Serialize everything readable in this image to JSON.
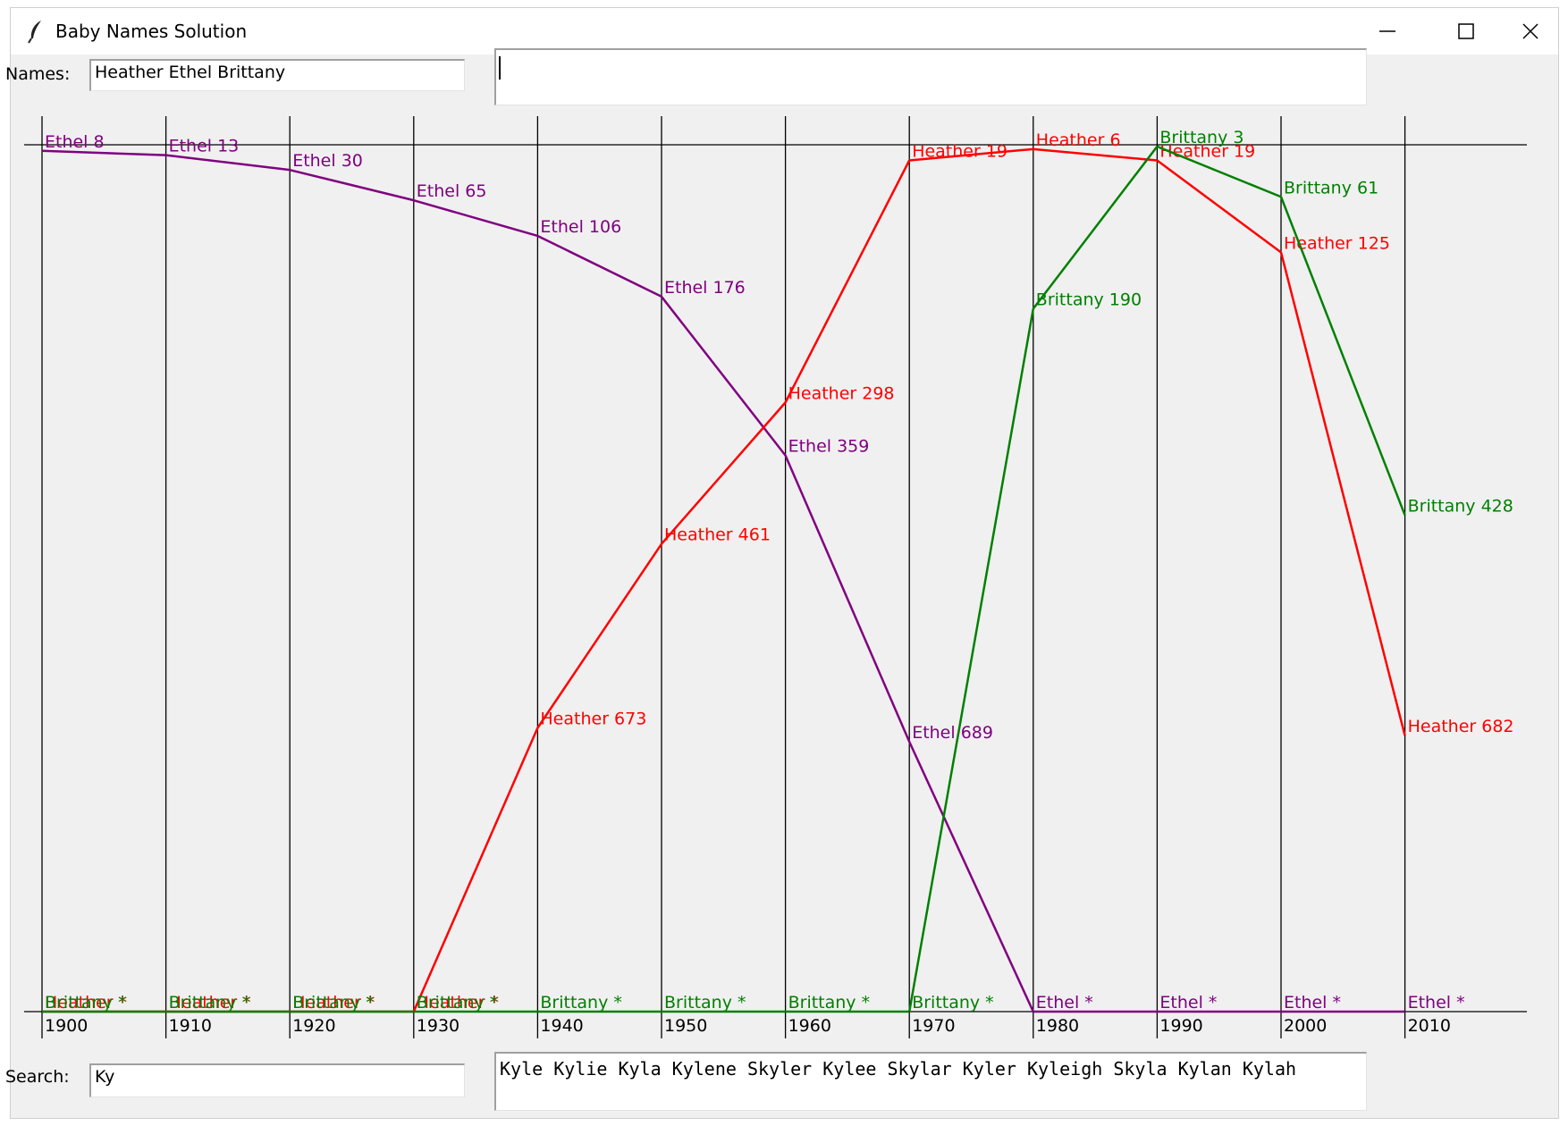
{
  "window": {
    "title": "Baby Names Solution"
  },
  "names_label": "Names:",
  "names_value": "Heather Ethel Brittany",
  "top_text_value": "",
  "search_label": "Search:",
  "search_value": "Ky",
  "search_results": "Kyle Kylie Kyla Kylene Skyler Kylee Skylar Kyler Kyleigh Skyla Kylan Kylah",
  "colors": {
    "Heather": "#ff0000",
    "Ethel": "#800080",
    "Brittany": "#008000",
    "grid": "#000000"
  },
  "chart_data": {
    "type": "line",
    "x_label": "",
    "y_label": "",
    "decades": [
      1900,
      1910,
      1920,
      1930,
      1940,
      1950,
      1960,
      1970,
      1980,
      1990,
      2000,
      2010
    ],
    "max_rank": 1000,
    "rank_direction": "rank 1 at top, unranked at bottom",
    "unranked_marker": "*",
    "series": [
      {
        "name": "Ethel",
        "color": "#800080",
        "ranks": [
          8,
          13,
          30,
          65,
          106,
          176,
          359,
          689,
          null,
          null,
          null,
          null
        ]
      },
      {
        "name": "Heather",
        "color": "#ff0000",
        "ranks": [
          null,
          null,
          null,
          null,
          673,
          461,
          298,
          19,
          6,
          19,
          125,
          682
        ]
      },
      {
        "name": "Brittany",
        "color": "#008000",
        "ranks": [
          null,
          null,
          null,
          null,
          null,
          null,
          null,
          null,
          190,
          3,
          61,
          428
        ]
      }
    ]
  }
}
